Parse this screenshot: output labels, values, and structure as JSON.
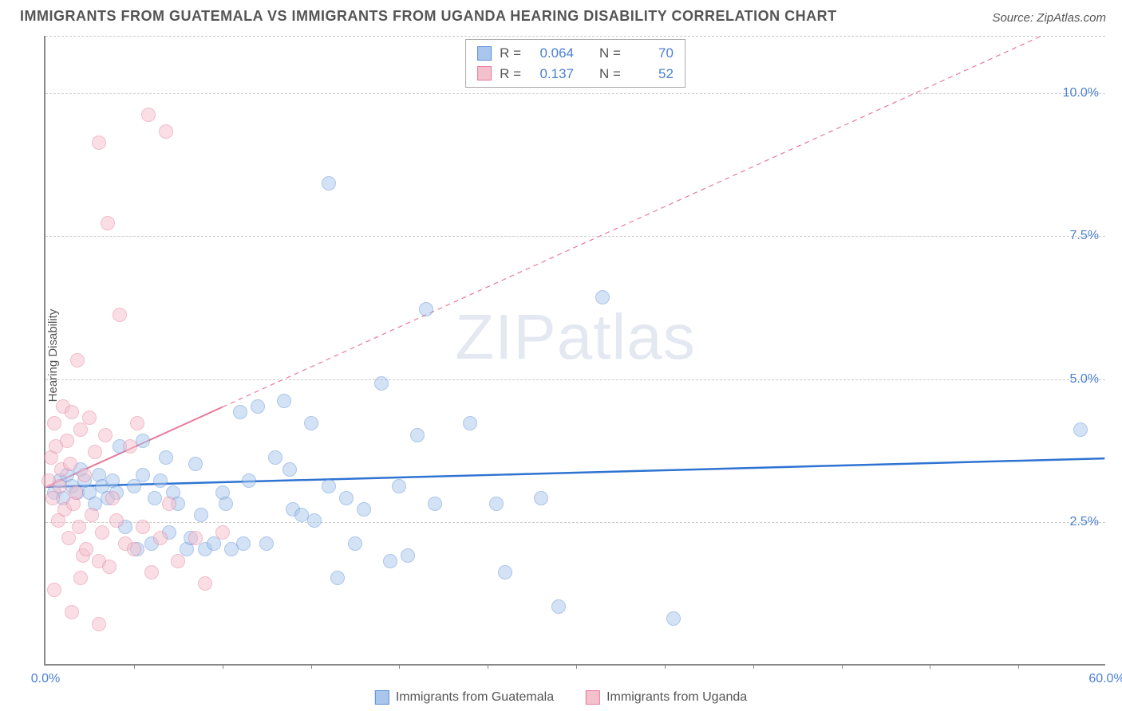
{
  "title": "IMMIGRANTS FROM GUATEMALA VS IMMIGRANTS FROM UGANDA HEARING DISABILITY CORRELATION CHART",
  "source": "Source: ZipAtlas.com",
  "ylabel": "Hearing Disability",
  "watermark_zip": "ZIP",
  "watermark_atlas": "atlas",
  "chart": {
    "type": "scatter",
    "xlim": [
      0,
      60
    ],
    "ylim": [
      0,
      11
    ],
    "background_color": "#ffffff",
    "grid_color": "#cccccc",
    "marker_radius": 9,
    "marker_opacity": 0.5,
    "yticks": [
      {
        "v": 2.5,
        "label": "2.5%"
      },
      {
        "v": 5.0,
        "label": "5.0%"
      },
      {
        "v": 7.5,
        "label": "7.5%"
      },
      {
        "v": 10.0,
        "label": "10.0%"
      }
    ],
    "xticks": [
      {
        "v": 0,
        "label": "0.0%"
      },
      {
        "v": 60,
        "label": "60.0%"
      }
    ],
    "xtick_marks": [
      5,
      10,
      15,
      20,
      25,
      30,
      35,
      40,
      45,
      50,
      55
    ],
    "series": [
      {
        "name": "Immigrants from Guatemala",
        "fill": "#a9c6ec",
        "stroke": "#5b8fd6",
        "trend": {
          "y0": 3.1,
          "y1": 3.6,
          "x1": 60,
          "dashed": false,
          "color": "#2e73d2",
          "width": 2.5
        },
        "stats": {
          "r": "0.064",
          "n": "70"
        },
        "points": [
          [
            0.5,
            3.0
          ],
          [
            0.8,
            3.2
          ],
          [
            1.0,
            2.9
          ],
          [
            1.2,
            3.3
          ],
          [
            1.5,
            3.1
          ],
          [
            1.8,
            3.0
          ],
          [
            2.0,
            3.4
          ],
          [
            2.2,
            3.2
          ],
          [
            2.5,
            3.0
          ],
          [
            2.8,
            2.8
          ],
          [
            3.0,
            3.3
          ],
          [
            3.2,
            3.1
          ],
          [
            3.5,
            2.9
          ],
          [
            3.8,
            3.2
          ],
          [
            4.0,
            3.0
          ],
          [
            4.5,
            2.4
          ],
          [
            5.0,
            3.1
          ],
          [
            5.2,
            2.0
          ],
          [
            5.5,
            3.9
          ],
          [
            5.5,
            3.3
          ],
          [
            6.0,
            2.1
          ],
          [
            6.2,
            2.9
          ],
          [
            6.5,
            3.2
          ],
          [
            7.0,
            2.3
          ],
          [
            7.2,
            3.0
          ],
          [
            7.5,
            2.8
          ],
          [
            8.0,
            2.0
          ],
          [
            8.2,
            2.2
          ],
          [
            8.5,
            3.5
          ],
          [
            9.0,
            2.0
          ],
          [
            9.5,
            2.1
          ],
          [
            10.0,
            3.0
          ],
          [
            10.2,
            2.8
          ],
          [
            10.5,
            2.0
          ],
          [
            11.0,
            4.4
          ],
          [
            11.2,
            2.1
          ],
          [
            11.5,
            3.2
          ],
          [
            12.0,
            4.5
          ],
          [
            12.5,
            2.1
          ],
          [
            13.0,
            3.6
          ],
          [
            13.5,
            4.6
          ],
          [
            14.0,
            2.7
          ],
          [
            14.5,
            2.6
          ],
          [
            15.0,
            4.2
          ],
          [
            15.2,
            2.5
          ],
          [
            16.0,
            3.1
          ],
          [
            16.0,
            8.4
          ],
          [
            16.5,
            1.5
          ],
          [
            17.0,
            2.9
          ],
          [
            17.5,
            2.1
          ],
          [
            18.0,
            2.7
          ],
          [
            19.0,
            4.9
          ],
          [
            19.5,
            1.8
          ],
          [
            20.0,
            3.1
          ],
          [
            20.5,
            1.9
          ],
          [
            21.0,
            4.0
          ],
          [
            21.5,
            6.2
          ],
          [
            22.0,
            2.8
          ],
          [
            24.0,
            4.2
          ],
          [
            25.5,
            2.8
          ],
          [
            26.0,
            1.6
          ],
          [
            28.0,
            2.9
          ],
          [
            29.0,
            1.0
          ],
          [
            31.5,
            6.4
          ],
          [
            35.5,
            0.8
          ],
          [
            58.5,
            4.1
          ],
          [
            4.2,
            3.8
          ],
          [
            6.8,
            3.6
          ],
          [
            8.8,
            2.6
          ],
          [
            13.8,
            3.4
          ]
        ]
      },
      {
        "name": "Immigrants from Uganda",
        "fill": "#f4c0cc",
        "stroke": "#e77a9a",
        "trend": {
          "y0": 3.1,
          "y1": 11.5,
          "x1": 60,
          "dashed": true,
          "dashed_after_x": 10,
          "color": "#e77a9a",
          "width": 2
        },
        "stats": {
          "r": "0.137",
          "n": "52"
        },
        "points": [
          [
            0.2,
            3.2
          ],
          [
            0.3,
            3.6
          ],
          [
            0.4,
            2.9
          ],
          [
            0.5,
            4.2
          ],
          [
            0.6,
            3.8
          ],
          [
            0.7,
            2.5
          ],
          [
            0.8,
            3.1
          ],
          [
            0.9,
            3.4
          ],
          [
            1.0,
            4.5
          ],
          [
            1.1,
            2.7
          ],
          [
            1.2,
            3.9
          ],
          [
            1.3,
            2.2
          ],
          [
            1.4,
            3.5
          ],
          [
            1.5,
            4.4
          ],
          [
            1.6,
            2.8
          ],
          [
            1.7,
            3.0
          ],
          [
            1.8,
            5.3
          ],
          [
            1.9,
            2.4
          ],
          [
            2.0,
            4.1
          ],
          [
            2.1,
            1.9
          ],
          [
            2.2,
            3.3
          ],
          [
            2.3,
            2.0
          ],
          [
            2.5,
            4.3
          ],
          [
            2.6,
            2.6
          ],
          [
            2.8,
            3.7
          ],
          [
            3.0,
            1.8
          ],
          [
            3.0,
            9.1
          ],
          [
            3.2,
            2.3
          ],
          [
            3.4,
            4.0
          ],
          [
            3.5,
            7.7
          ],
          [
            3.6,
            1.7
          ],
          [
            3.8,
            2.9
          ],
          [
            4.0,
            2.5
          ],
          [
            4.2,
            6.1
          ],
          [
            4.5,
            2.1
          ],
          [
            4.8,
            3.8
          ],
          [
            5.0,
            2.0
          ],
          [
            5.2,
            4.2
          ],
          [
            5.5,
            2.4
          ],
          [
            5.8,
            9.6
          ],
          [
            6.0,
            1.6
          ],
          [
            6.5,
            2.2
          ],
          [
            6.8,
            9.3
          ],
          [
            7.0,
            2.8
          ],
          [
            7.5,
            1.8
          ],
          [
            8.5,
            2.2
          ],
          [
            9.0,
            1.4
          ],
          [
            10.0,
            2.3
          ],
          [
            3.0,
            0.7
          ],
          [
            1.5,
            0.9
          ],
          [
            2.0,
            1.5
          ],
          [
            0.5,
            1.3
          ]
        ]
      }
    ]
  },
  "legend_labels": {
    "r_prefix": "R =",
    "n_prefix": "N ="
  }
}
